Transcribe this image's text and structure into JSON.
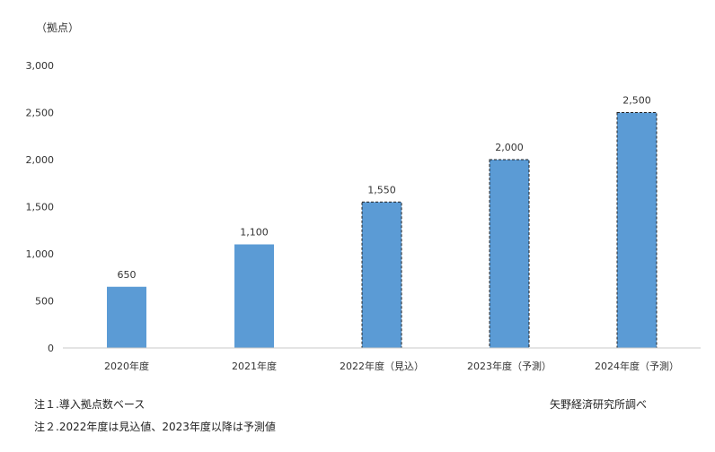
{
  "chart_data": {
    "type": "bar",
    "unit_label": "（拠点）",
    "categories": [
      "2020年度",
      "2021年度",
      "2022年度（見込）",
      "2023年度（予測）",
      "2024年度（予測）"
    ],
    "values": [
      650,
      1100,
      1550,
      2000,
      2500
    ],
    "value_labels": [
      "650",
      "1,100",
      "1,550",
      "2,000",
      "2,500"
    ],
    "dashed": [
      false,
      false,
      true,
      true,
      true
    ],
    "ylim": [
      0,
      3000
    ],
    "yticks": [
      0,
      500,
      1000,
      1500,
      2000,
      2500,
      3000
    ],
    "ytick_labels": [
      "0",
      "500",
      "1,000",
      "1,500",
      "2,000",
      "2,500",
      "3,000"
    ],
    "bar_color": "#5b9bd5",
    "grid": false
  },
  "notes": {
    "note1": "注１.導入拠点数ベース",
    "note2": "注２.2022年度は見込値、2023年度以降は予測値",
    "source": "矢野経済研究所調べ"
  }
}
